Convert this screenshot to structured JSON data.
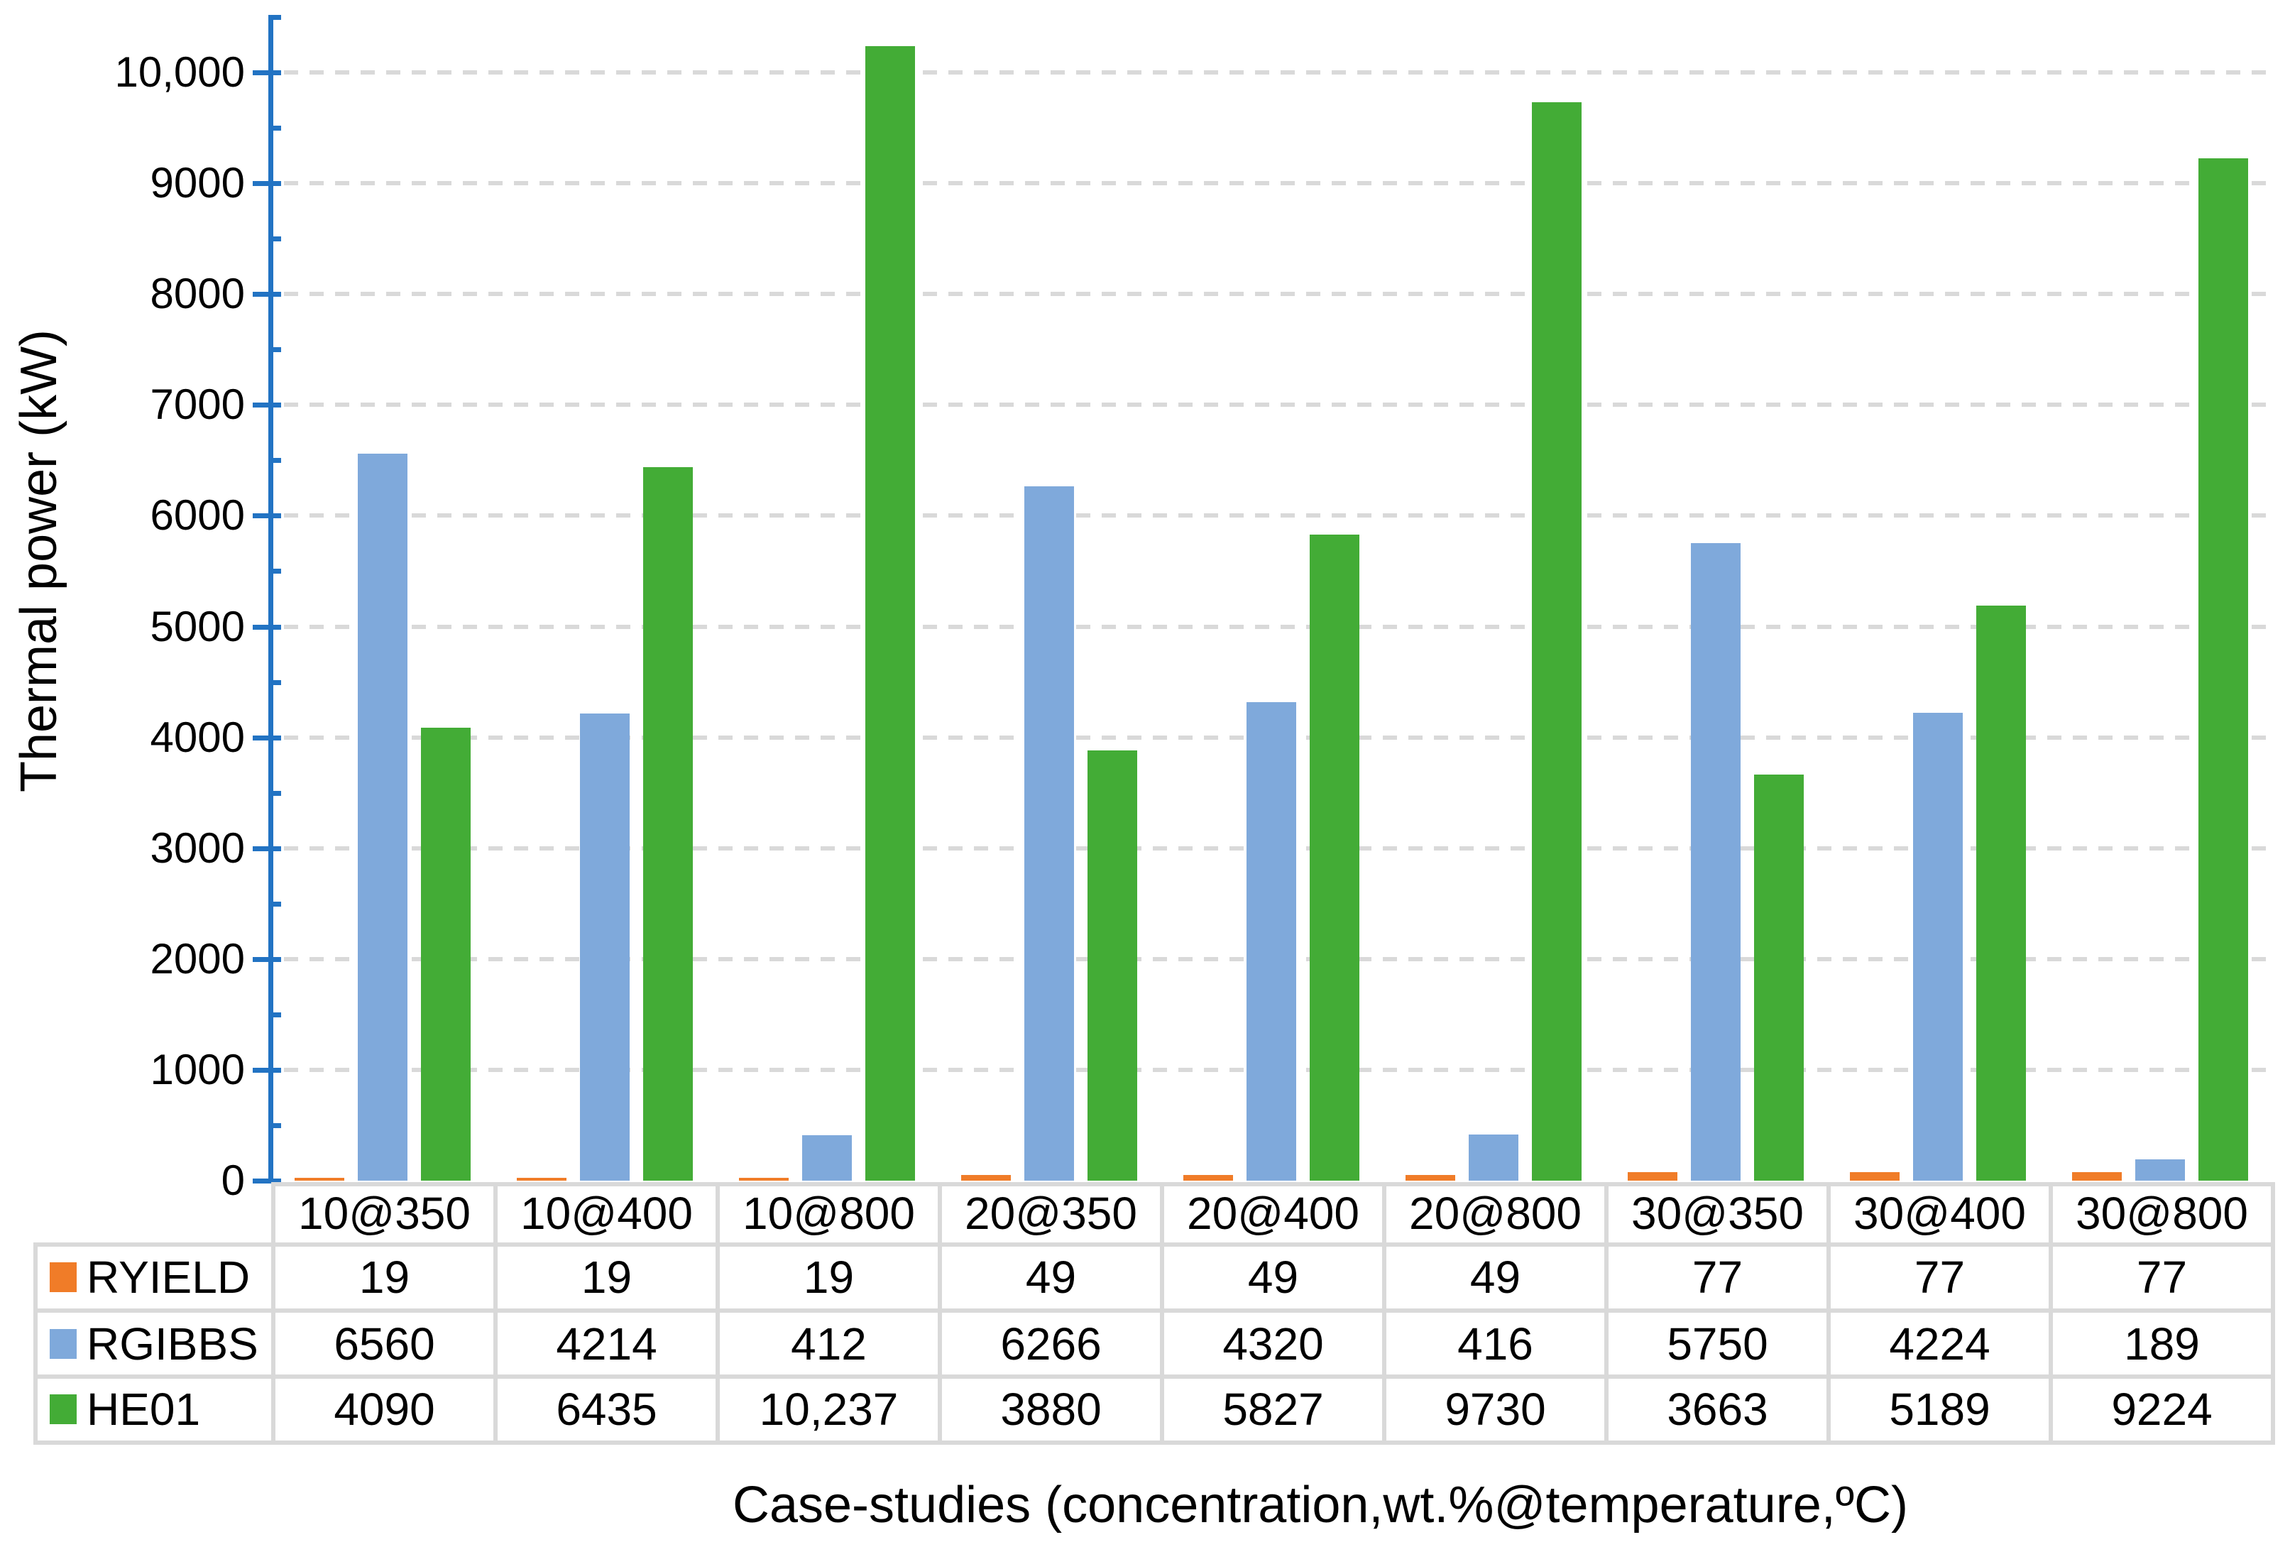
{
  "chart_data": {
    "type": "bar",
    "title": "",
    "xlabel": "Case-studies (concentration,wt.%@temperature,ºC)",
    "ylabel": "Thermal power (kW)",
    "categories": [
      "10@350",
      "10@400",
      "10@800",
      "20@350",
      "20@400",
      "20@800",
      "30@350",
      "30@400",
      "30@800"
    ],
    "series": [
      {
        "name": "RYIELD",
        "color": "#F07C28",
        "values": [
          19,
          19,
          19,
          49,
          49,
          49,
          77,
          77,
          77
        ]
      },
      {
        "name": "RGIBBS",
        "color": "#7FA9DB",
        "values": [
          6560,
          4214,
          412,
          6266,
          4320,
          416,
          5750,
          4224,
          189
        ]
      },
      {
        "name": "HE01",
        "color": "#43AC36",
        "values": [
          4090,
          6435,
          10237,
          3880,
          5827,
          9730,
          3663,
          5189,
          9224
        ]
      }
    ],
    "table_display_values": [
      [
        "19",
        "19",
        "19",
        "49",
        "49",
        "49",
        "77",
        "77",
        "77"
      ],
      [
        "6560",
        "4214",
        "412",
        "6266",
        "4320",
        "416",
        "5750",
        "4224",
        "189"
      ],
      [
        "4090",
        "6435",
        "10,237",
        "3880",
        "5827",
        "9730",
        "3663",
        "5189",
        "9224"
      ]
    ],
    "ylim": [
      0,
      10500
    ],
    "ytick_interval": 1000,
    "minor_tick_interval": 500,
    "ytick_labels": [
      "0",
      "1000",
      "2000",
      "3000",
      "4000",
      "5000",
      "6000",
      "7000",
      "8000",
      "9000",
      "10,000"
    ],
    "grid": "dashed horizontal major gridlines",
    "legend_position": "table left column",
    "axis_color": "#2273C3",
    "grid_color": "#D9D9D9",
    "table_border_color": "#D9D9D9",
    "text_color": "#000000"
  }
}
